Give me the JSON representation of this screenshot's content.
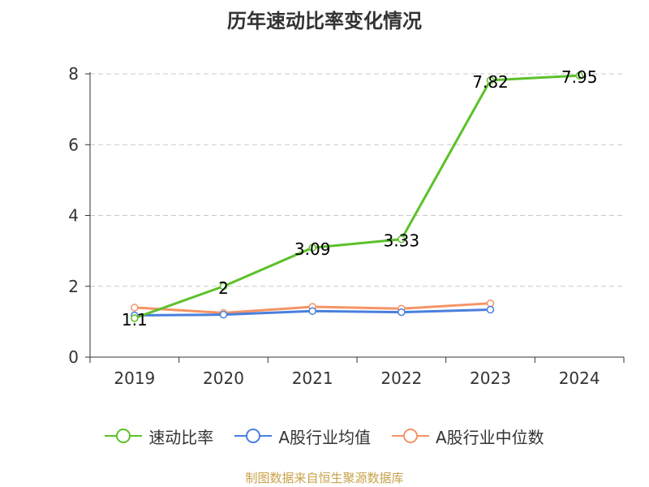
{
  "title": "历年速动比率变化情况",
  "source": "制图数据来自恒生聚源数据库",
  "chart_data": {
    "type": "line",
    "title": "历年速动比率变化情况",
    "categories": [
      "2019",
      "2020",
      "2021",
      "2022",
      "2023",
      "2024"
    ],
    "ylim": [
      0,
      8
    ],
    "yticks": [
      0,
      2,
      4,
      6,
      8
    ],
    "grid": true,
    "legend_position": "bottom",
    "series": [
      {
        "name": "速动比率",
        "color": "#5cc12a",
        "values": [
          1.1,
          2,
          3.09,
          3.33,
          7.82,
          7.95
        ],
        "labels": [
          "1.1",
          "2",
          "3.09",
          "3.33",
          "7.82",
          "7.95"
        ],
        "show_labels": true
      },
      {
        "name": "A股行业均值",
        "color": "#4a7fdc",
        "values": [
          1.18,
          1.2,
          1.3,
          1.27,
          1.34,
          null
        ],
        "show_labels": false
      },
      {
        "name": "A股行业中位数",
        "color": "#f59466",
        "values": [
          1.4,
          1.25,
          1.42,
          1.37,
          1.52,
          null
        ],
        "show_labels": false
      }
    ]
  }
}
